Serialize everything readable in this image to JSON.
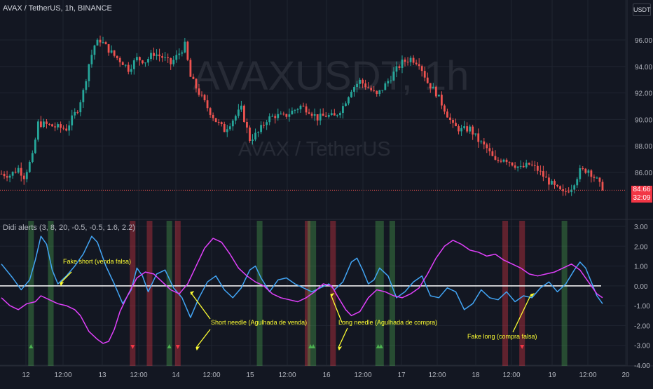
{
  "header": {
    "title": "AVAX / TetherUS, 1h, BINANCE",
    "currency": "USDT",
    "watermark_big": "AVAXUSDT, 1h",
    "watermark_small": "AVAX / TetherUS"
  },
  "indicator": {
    "title": "Didi alerts (3, 8, 20, -0.5, -0.5, 1.6, 2.2)"
  },
  "last_price": {
    "value": "84.66",
    "countdown": "32:09"
  },
  "colors": {
    "background": "#131722",
    "up": "#26a69a",
    "down": "#ef5350",
    "fast_line": "#42a5f5",
    "slow_line": "#e040fb",
    "zero_line": "#ffffff",
    "annotation": "#ffff33",
    "grid": "#1f2430"
  },
  "chart_data": [
    {
      "type": "candlestick",
      "title": "AVAX / TetherUS, 1h, BINANCE",
      "ylim": [
        83,
        99
      ],
      "y_ticks": [
        86,
        88,
        90,
        92,
        94,
        96
      ],
      "y_tick_labels": [
        "86.00",
        "88.00",
        "90.00",
        "92.00",
        "94.00",
        "96.00"
      ],
      "x_ticks": [
        "12",
        "12:00",
        "13",
        "12:00",
        "14",
        "12:00",
        "15",
        "12:00",
        "16",
        "12:00",
        "17",
        "12:00",
        "18",
        "12:00",
        "19",
        "12:00",
        "20"
      ],
      "close_trend": [
        [
          0,
          85.9
        ],
        [
          3,
          85.8
        ],
        [
          6,
          86.3
        ],
        [
          8,
          85.7
        ],
        [
          11,
          87.2
        ],
        [
          13,
          89.7
        ],
        [
          16,
          89.6
        ],
        [
          20,
          89.4
        ],
        [
          23,
          89.3
        ],
        [
          27,
          90.8
        ],
        [
          29,
          92.1
        ],
        [
          31,
          94.2
        ],
        [
          33,
          95.6
        ],
        [
          35,
          96.0
        ],
        [
          37,
          95.5
        ],
        [
          40,
          94.8
        ],
        [
          43,
          94.3
        ],
        [
          45,
          93.8
        ],
        [
          48,
          94.6
        ],
        [
          51,
          94.4
        ],
        [
          54,
          95.0
        ],
        [
          57,
          94.7
        ],
        [
          60,
          94.2
        ],
        [
          63,
          95.0
        ],
        [
          65,
          95.6
        ],
        [
          67,
          93.2
        ],
        [
          70,
          92.0
        ],
        [
          73,
          90.9
        ],
        [
          76,
          89.9
        ],
        [
          79,
          89.2
        ],
        [
          82,
          90.0
        ],
        [
          85,
          90.8
        ],
        [
          88,
          88.5
        ],
        [
          91,
          89.0
        ],
        [
          94,
          90.0
        ],
        [
          97,
          90.3
        ],
        [
          100,
          90.2
        ],
        [
          103,
          90.6
        ],
        [
          106,
          91.0
        ],
        [
          109,
          90.7
        ],
        [
          112,
          90.1
        ],
        [
          115,
          90.3
        ],
        [
          118,
          90.2
        ],
        [
          121,
          91.0
        ],
        [
          124,
          92.3
        ],
        [
          127,
          92.9
        ],
        [
          130,
          92.4
        ],
        [
          133,
          91.8
        ],
        [
          136,
          92.6
        ],
        [
          139,
          93.5
        ],
        [
          142,
          94.3
        ],
        [
          145,
          94.6
        ],
        [
          148,
          94.3
        ],
        [
          151,
          92.8
        ],
        [
          154,
          92.0
        ],
        [
          157,
          90.8
        ],
        [
          160,
          89.5
        ],
        [
          163,
          89.2
        ],
        [
          166,
          89.3
        ],
        [
          169,
          88.4
        ],
        [
          172,
          87.8
        ],
        [
          175,
          86.8
        ],
        [
          178,
          87.1
        ],
        [
          181,
          86.7
        ],
        [
          184,
          86.3
        ],
        [
          187,
          86.6
        ],
        [
          190,
          86.2
        ],
        [
          193,
          85.5
        ],
        [
          196,
          84.9
        ],
        [
          199,
          84.4
        ],
        [
          202,
          84.9
        ],
        [
          205,
          86.1
        ],
        [
          208,
          86.2
        ],
        [
          211,
          85.4
        ],
        [
          213,
          84.66
        ]
      ],
      "last_price": 84.66,
      "candles_count": 214
    },
    {
      "type": "line",
      "title": "Didi alerts (3, 8, 20, -0.5, -0.5, 1.6, 2.2)",
      "ylim": [
        -4,
        3
      ],
      "y_ticks": [
        -4,
        -3,
        -2,
        -1,
        0,
        1,
        2,
        3
      ],
      "y_tick_labels": [
        "-4.00",
        "-3.00",
        "-2.00",
        "-1.00",
        "0.00",
        "1.00",
        "2.00",
        "3.00"
      ],
      "zero_line": 0,
      "series": [
        {
          "color": "#42a5f5",
          "points": [
            [
              0,
              1.1
            ],
            [
              4,
              0.4
            ],
            [
              7,
              -0.2
            ],
            [
              10,
              0.3
            ],
            [
              12,
              1.3
            ],
            [
              14,
              2.5
            ],
            [
              16,
              2.1
            ],
            [
              18,
              0.8
            ],
            [
              20,
              0.1
            ],
            [
              23,
              0.5
            ],
            [
              26,
              1.0
            ],
            [
              29,
              1.6
            ],
            [
              32,
              2.5
            ],
            [
              34,
              2.2
            ],
            [
              37,
              1.0
            ],
            [
              40,
              0.1
            ],
            [
              43,
              -0.9
            ],
            [
              46,
              -0.2
            ],
            [
              48,
              0.9
            ],
            [
              50,
              0.5
            ],
            [
              52,
              -0.3
            ],
            [
              55,
              0.6
            ],
            [
              58,
              0.8
            ],
            [
              61,
              -0.1
            ],
            [
              64,
              -0.6
            ],
            [
              67,
              -1.6
            ],
            [
              70,
              -0.6
            ],
            [
              73,
              0.2
            ],
            [
              76,
              0.5
            ],
            [
              79,
              -0.2
            ],
            [
              82,
              -0.6
            ],
            [
              85,
              -0.1
            ],
            [
              88,
              0.8
            ],
            [
              90,
              1.0
            ],
            [
              92,
              0.4
            ],
            [
              95,
              -0.3
            ],
            [
              98,
              0.3
            ],
            [
              101,
              0.4
            ],
            [
              104,
              0.1
            ],
            [
              107,
              -0.1
            ],
            [
              110,
              -0.3
            ],
            [
              113,
              -0.1
            ],
            [
              116,
              0.1
            ],
            [
              118,
              -0.2
            ],
            [
              121,
              0.2
            ],
            [
              124,
              1.2
            ],
            [
              126,
              1.4
            ],
            [
              128,
              0.8
            ],
            [
              130,
              0.1
            ],
            [
              132,
              0.3
            ],
            [
              134,
              0.9
            ],
            [
              137,
              0.5
            ],
            [
              140,
              -0.6
            ],
            [
              143,
              -0.3
            ],
            [
              146,
              0.2
            ],
            [
              149,
              0.5
            ],
            [
              152,
              -0.5
            ],
            [
              155,
              -0.6
            ],
            [
              158,
              -0.1
            ],
            [
              161,
              -0.3
            ],
            [
              164,
              -1.2
            ],
            [
              167,
              -0.9
            ],
            [
              170,
              -0.2
            ],
            [
              173,
              -0.6
            ],
            [
              176,
              -0.7
            ],
            [
              179,
              -0.3
            ],
            [
              182,
              -0.8
            ],
            [
              185,
              -0.5
            ],
            [
              188,
              -0.6
            ],
            [
              191,
              -0.1
            ],
            [
              194,
              0.2
            ],
            [
              197,
              -0.3
            ],
            [
              200,
              0.1
            ],
            [
              203,
              0.8
            ],
            [
              205,
              1.2
            ],
            [
              207,
              0.9
            ],
            [
              209,
              0.2
            ],
            [
              211,
              -0.5
            ],
            [
              213,
              -0.9
            ]
          ]
        },
        {
          "color": "#e040fb",
          "points": [
            [
              0,
              -0.6
            ],
            [
              3,
              -1.0
            ],
            [
              6,
              -1.2
            ],
            [
              9,
              -0.9
            ],
            [
              12,
              -0.8
            ],
            [
              14,
              -0.5
            ],
            [
              17,
              -0.7
            ],
            [
              20,
              -0.9
            ],
            [
              23,
              -1.0
            ],
            [
              26,
              -1.2
            ],
            [
              28,
              -1.5
            ],
            [
              31,
              -2.3
            ],
            [
              34,
              -2.7
            ],
            [
              36,
              -2.9
            ],
            [
              38,
              -2.8
            ],
            [
              40,
              -2.2
            ],
            [
              42,
              -1.3
            ],
            [
              45,
              -0.4
            ],
            [
              48,
              0.4
            ],
            [
              51,
              0.7
            ],
            [
              54,
              0.6
            ],
            [
              57,
              0.2
            ],
            [
              60,
              -0.2
            ],
            [
              63,
              -0.4
            ],
            [
              66,
              0.1
            ],
            [
              69,
              1.0
            ],
            [
              72,
              1.9
            ],
            [
              75,
              2.4
            ],
            [
              78,
              2.2
            ],
            [
              81,
              1.6
            ],
            [
              84,
              0.9
            ],
            [
              87,
              0.5
            ],
            [
              90,
              0.2
            ],
            [
              93,
              0.0
            ],
            [
              96,
              -0.4
            ],
            [
              99,
              -0.6
            ],
            [
              102,
              -0.7
            ],
            [
              105,
              -0.8
            ],
            [
              108,
              -0.6
            ],
            [
              111,
              -0.3
            ],
            [
              114,
              0.1
            ],
            [
              117,
              0.0
            ],
            [
              119,
              -0.5
            ],
            [
              122,
              -1.2
            ],
            [
              124,
              -1.5
            ],
            [
              127,
              -1.3
            ],
            [
              130,
              -0.6
            ],
            [
              133,
              -0.2
            ],
            [
              136,
              -0.3
            ],
            [
              139,
              -0.5
            ],
            [
              142,
              -0.6
            ],
            [
              145,
              -0.4
            ],
            [
              148,
              -0.1
            ],
            [
              151,
              0.6
            ],
            [
              154,
              1.4
            ],
            [
              157,
              2.0
            ],
            [
              160,
              2.3
            ],
            [
              163,
              2.1
            ],
            [
              166,
              1.8
            ],
            [
              169,
              1.7
            ],
            [
              172,
              1.5
            ],
            [
              175,
              1.6
            ],
            [
              178,
              1.3
            ],
            [
              181,
              1.1
            ],
            [
              184,
              0.9
            ],
            [
              187,
              0.6
            ],
            [
              190,
              0.5
            ],
            [
              193,
              0.6
            ],
            [
              196,
              0.7
            ],
            [
              199,
              0.9
            ],
            [
              202,
              1.1
            ],
            [
              205,
              0.8
            ],
            [
              208,
              0.2
            ],
            [
              211,
              -0.4
            ],
            [
              213,
              -0.6
            ]
          ]
        }
      ],
      "signal_bands": [
        {
          "kind": "green",
          "x": [
            10,
            11
          ]
        },
        {
          "kind": "green",
          "x": [
            17,
            18
          ]
        },
        {
          "kind": "red",
          "x": [
            46,
            47
          ]
        },
        {
          "kind": "red",
          "x": [
            52,
            53
          ]
        },
        {
          "kind": "green",
          "x": [
            59,
            60
          ]
        },
        {
          "kind": "red",
          "x": [
            62,
            63
          ]
        },
        {
          "kind": "green",
          "x": [
            91,
            92
          ]
        },
        {
          "kind": "red",
          "x": [
            108,
            109
          ]
        },
        {
          "kind": "green",
          "x": [
            109,
            111
          ]
        },
        {
          "kind": "red",
          "x": [
            117,
            118
          ]
        },
        {
          "kind": "green",
          "x": [
            133,
            135
          ]
        },
        {
          "kind": "green",
          "x": [
            138,
            139
          ]
        },
        {
          "kind": "red",
          "x": [
            178,
            179
          ]
        },
        {
          "kind": "red",
          "x": [
            184,
            185
          ]
        },
        {
          "kind": "green",
          "x": [
            199,
            200
          ]
        }
      ],
      "markers": [
        {
          "kind": "up",
          "x": 10.5
        },
        {
          "kind": "down",
          "x": 46.5
        },
        {
          "kind": "up",
          "x": 59.5
        },
        {
          "kind": "down",
          "x": 62.5
        },
        {
          "kind": "up",
          "x": 109.5
        },
        {
          "kind": "up",
          "x": 110.5
        },
        {
          "kind": "up",
          "x": 133.5
        },
        {
          "kind": "up",
          "x": 134.5
        },
        {
          "kind": "down",
          "x": 184.5
        }
      ],
      "annotations": [
        {
          "text": "Fake short (venda falsa)",
          "x": 22,
          "y": 1.3
        },
        {
          "text": "Short needle (Agulhada de venda)",
          "x": 72,
          "y": -2.0
        },
        {
          "text": "Long needle (Agulhada de compra)",
          "x": 113,
          "y": -2.0
        },
        {
          "text": "Fake long (compra falsa)",
          "x": 157,
          "y": -2.5
        }
      ]
    }
  ]
}
